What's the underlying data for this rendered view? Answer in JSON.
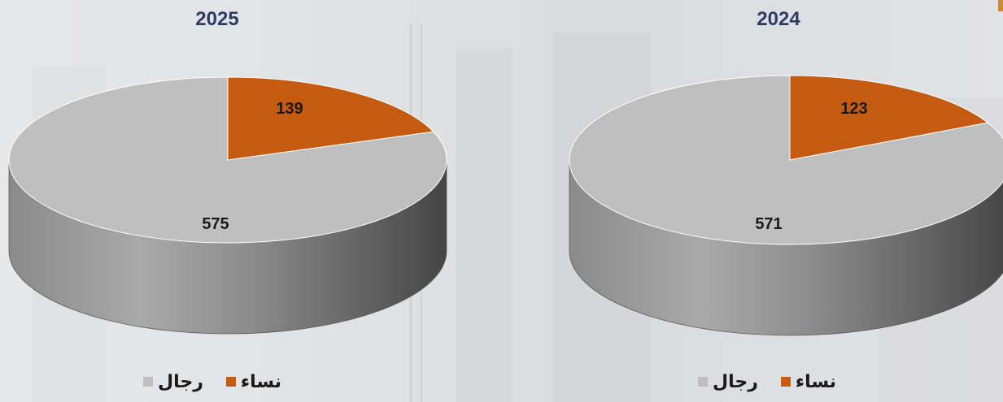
{
  "chart_data": [
    {
      "type": "pie",
      "title": "2025",
      "categories": [
        "نساء",
        "رجال"
      ],
      "values": [
        139,
        575
      ],
      "colors": [
        "#c55a11",
        "#bfbfbf"
      ],
      "legend": [
        "رجال",
        "نساء"
      ],
      "legend_placement": "bottom"
    },
    {
      "type": "pie",
      "title": "2024",
      "categories": [
        "نساء",
        "رجال"
      ],
      "values": [
        123,
        571
      ],
      "colors": [
        "#c55a11",
        "#bfbfbf"
      ],
      "legend": [
        "رجال",
        "نساء"
      ],
      "legend_placement": "bottom"
    }
  ],
  "colors": {
    "women": "#c55a11",
    "men": "#bfbfbf",
    "title": "#2c3d63",
    "accent": "#d08a2a"
  }
}
